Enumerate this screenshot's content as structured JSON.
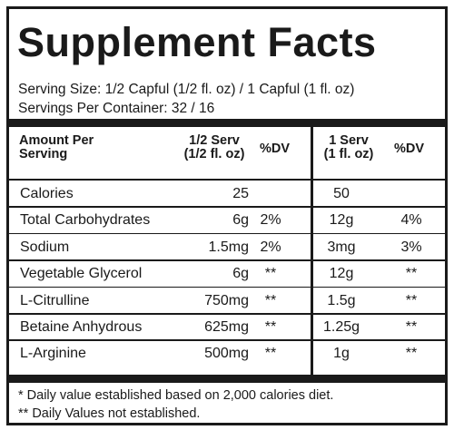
{
  "title": "Supplement Facts",
  "serving_size": "Serving Size: 1/2 Capful (1/2 fl. oz) / 1 Capful (1 fl. oz)",
  "servings_per_container": "Servings Per Container: 32 / 16",
  "headers": {
    "amount_per_serving_line1": "Amount Per",
    "amount_per_serving_line2": "Serving",
    "half_serv_line1": "1/2 Serv",
    "half_serv_line2": "(1/2 fl. oz)",
    "dv1": "%DV",
    "one_serv_line1": "1 Serv",
    "one_serv_line2": "(1 fl. oz)",
    "dv2": "%DV"
  },
  "rows": [
    {
      "name": "Calories",
      "half": "25",
      "dv_half": "",
      "one": "50",
      "dv_one": ""
    },
    {
      "name": "Total Carbohydrates",
      "half": "6g",
      "dv_half": "2%",
      "one": "12g",
      "dv_one": "4%"
    },
    {
      "name": "Sodium",
      "half": "1.5mg",
      "dv_half": "2%",
      "one": "3mg",
      "dv_one": "3%"
    },
    {
      "name": "Vegetable Glycerol",
      "half": "6g",
      "dv_half": "**",
      "one": "12g",
      "dv_one": "**"
    },
    {
      "name": "L-Citrulline",
      "half": "750mg",
      "dv_half": "**",
      "one": "1.5g",
      "dv_one": "**"
    },
    {
      "name": "Betaine Anhydrous",
      "half": "625mg",
      "dv_half": "**",
      "one": "1.25g",
      "dv_one": "**"
    },
    {
      "name": "L-Arginine",
      "half": "500mg",
      "dv_half": "**",
      "one": "1g",
      "dv_one": "**"
    }
  ],
  "footnotes": [
    "* Daily value established based on 2,000 calories diet.",
    "** Daily Values not established."
  ]
}
